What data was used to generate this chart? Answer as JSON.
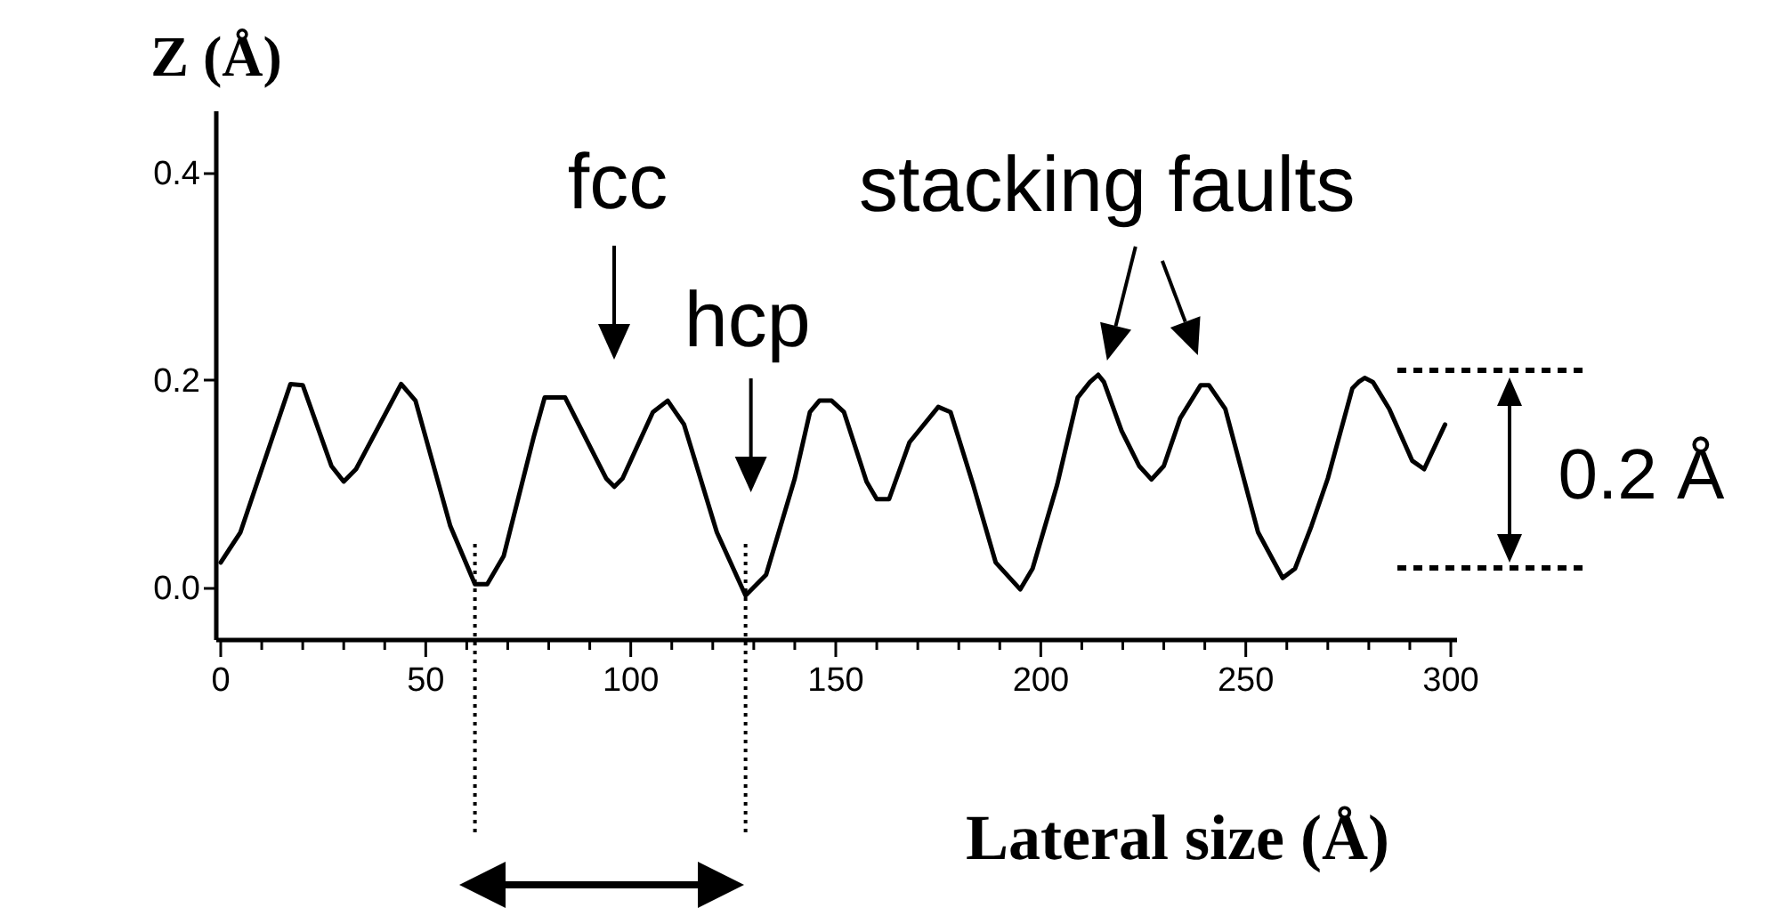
{
  "chart_data": {
    "type": "line",
    "xlabel": "Lateral size (Å)",
    "ylabel": "Z (Å)",
    "color": "#000000",
    "line_style": "solid",
    "grid": false,
    "x": [
      0,
      4.8,
      17,
      20,
      27,
      30,
      33,
      44,
      47.5,
      56,
      62,
      65,
      69,
      76.4,
      79,
      84,
      94,
      96,
      98,
      105.4,
      109,
      113,
      121,
      128,
      133,
      140,
      143.7,
      146,
      149,
      152,
      157.5,
      160,
      163,
      168,
      175,
      178,
      183.5,
      189,
      195,
      198,
      204,
      209,
      212,
      214,
      215.4,
      219.7,
      224,
      227,
      230,
      234,
      239,
      241,
      245,
      253,
      259,
      262,
      266,
      270,
      276,
      277.5,
      279,
      281,
      285,
      290.6,
      293.5,
      298.6
    ],
    "values": [
      0.024,
      0.053,
      0.196,
      0.195,
      0.117,
      0.102,
      0.114,
      0.196,
      0.18,
      0.059,
      0.003,
      0.003,
      0.03,
      0.146,
      0.183,
      0.183,
      0.105,
      0.097,
      0.105,
      0.169,
      0.18,
      0.157,
      0.053,
      -0.008,
      0.012,
      0.105,
      0.169,
      0.18,
      0.18,
      0.169,
      0.102,
      0.085,
      0.085,
      0.14,
      0.174,
      0.169,
      0.099,
      0.024,
      -0.002,
      0.018,
      0.099,
      0.183,
      0.198,
      0.205,
      0.198,
      0.151,
      0.117,
      0.104,
      0.117,
      0.163,
      0.195,
      0.195,
      0.172,
      0.053,
      0.009,
      0.018,
      0.059,
      0.105,
      0.192,
      0.198,
      0.202,
      0.198,
      0.172,
      0.122,
      0.114,
      0.157
    ],
    "xlim": [
      -1.3,
      301.3
    ],
    "ylim": [
      -0.05,
      0.46
    ],
    "xticks": [
      0,
      {
        "value": 10,
        "label": null
      },
      {
        "value": 20,
        "label": null
      },
      {
        "value": 30,
        "label": null
      },
      {
        "value": 40,
        "label": null
      },
      50,
      {
        "value": 60,
        "label": null
      },
      {
        "value": 70,
        "label": null
      },
      {
        "value": 80,
        "label": null
      },
      {
        "value": 90,
        "label": null
      },
      100,
      {
        "value": 110,
        "label": null
      },
      {
        "value": 120,
        "label": null
      },
      {
        "value": 130,
        "label": null
      },
      {
        "value": 140,
        "label": null
      },
      150,
      {
        "value": 160,
        "label": null
      },
      {
        "value": 170,
        "label": null
      },
      {
        "value": 180,
        "label": null
      },
      {
        "value": 190,
        "label": null
      },
      200,
      {
        "value": 210,
        "label": null
      },
      {
        "value": 220,
        "label": null
      },
      {
        "value": 230,
        "label": null
      },
      {
        "value": 240,
        "label": null
      },
      250,
      {
        "value": 260,
        "label": null
      },
      {
        "value": 270,
        "label": null
      },
      {
        "value": 280,
        "label": null
      },
      {
        "value": 290,
        "label": null
      },
      300
    ],
    "yticks": [
      {
        "value": 0,
        "label": "0.0"
      },
      0.2,
      0.4
    ],
    "annotations": [
      "fcc",
      {
        "text": "hcp",
        "x": 128,
        "y": -0.008
      },
      {
        "text": "stacking faults",
        "x": 214,
        "y": 0.205
      },
      "0.2 Å"
    ],
    "ref_lines": [
      {
        "axis": "x",
        "value": 62,
        "line_style": "dotted"
      },
      {
        "axis": "x",
        "value": 128,
        "line_style": "dotted"
      }
    ]
  }
}
